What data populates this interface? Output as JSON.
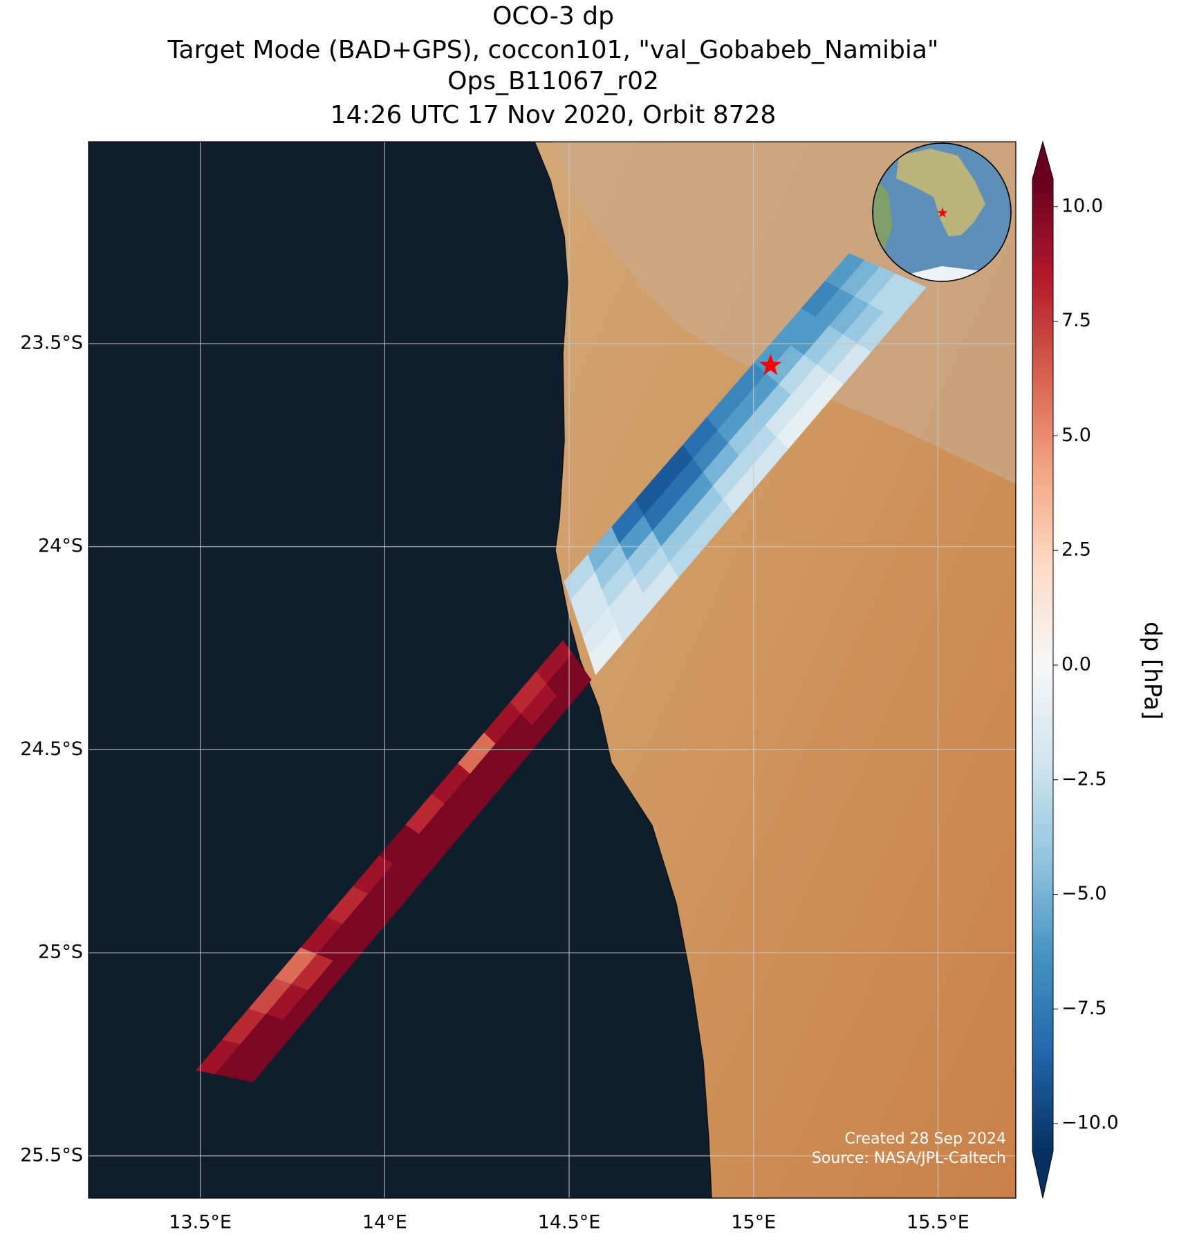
{
  "chart_data": {
    "type": "swath-map",
    "title": [
      "OCO-3 dp",
      "Target Mode (BAD+GPS), coccon101, \"val_Gobabeb_Namibia\"",
      "Ops_B11067_r02",
      "14:26 UTC 17 Nov 2020, Orbit 8728"
    ],
    "xlim": [
      13.197,
      15.711
    ],
    "ylim": [
      -25.604,
      -23.003
    ],
    "xticks": [
      {
        "value": 13.5,
        "label": "13.5°E"
      },
      {
        "value": 14,
        "label": "14°E"
      },
      {
        "value": 14.5,
        "label": "14.5°E"
      },
      {
        "value": 15,
        "label": "15°E"
      },
      {
        "value": 15.5,
        "label": "15.5°E"
      }
    ],
    "yticks": [
      {
        "value": -23.5,
        "label": "23.5°S"
      },
      {
        "value": -24,
        "label": "24°S"
      },
      {
        "value": -24.5,
        "label": "24.5°S"
      },
      {
        "value": -25,
        "label": "25°S"
      },
      {
        "value": -25.5,
        "label": "25.5°S"
      }
    ],
    "grid": true,
    "colorbar_label": "dp [hPa]",
    "clim": [
      -10.6,
      10.6
    ],
    "colorbar_ticks": [
      {
        "value": 10,
        "label": "10.0"
      },
      {
        "value": 7.5,
        "label": "7.5"
      },
      {
        "value": 5,
        "label": "5.0"
      },
      {
        "value": 2.5,
        "label": "2.5"
      },
      {
        "value": 0,
        "label": "0.0"
      },
      {
        "value": -2.5,
        "label": "−2.5"
      },
      {
        "value": -5,
        "label": "−5.0"
      },
      {
        "value": -7.5,
        "label": "−7.5"
      },
      {
        "value": -10,
        "label": "−10.0"
      }
    ],
    "colormap": [
      "#053061",
      "#2166ac",
      "#4393c3",
      "#92c5de",
      "#d1e5f0",
      "#f7f7f7",
      "#fddbc7",
      "#f4a582",
      "#d6604d",
      "#b2182b",
      "#67001f"
    ],
    "site": {
      "lon": 15.046,
      "lat": -23.554,
      "color": "#ff0000"
    },
    "swaths": [
      {
        "corner_lon": [
          14.487,
          14.572,
          15.259,
          15.468
        ],
        "corner_lat": [
          -24.086,
          -24.315,
          -23.278,
          -23.361
        ],
        "values": [
          [
            -3,
            -2,
            -2,
            -1.5,
            -1
          ],
          [
            -5,
            -4,
            -3,
            -2,
            -2
          ],
          [
            -8,
            -6,
            -4,
            -3,
            -2
          ],
          [
            -9,
            -8,
            -6,
            -4,
            -3
          ],
          [
            -9,
            -8,
            -6,
            -4,
            -3
          ],
          [
            -8,
            -7,
            -5,
            -3,
            -2
          ],
          [
            -7,
            -6,
            -4,
            -3,
            -2
          ],
          [
            -7,
            -6,
            -4,
            -2,
            -1
          ],
          [
            -6,
            -5,
            -3,
            -2,
            -1
          ],
          [
            -6,
            -6,
            -4,
            -3,
            -2
          ],
          [
            -7,
            -6,
            -5,
            -4,
            -3
          ],
          [
            -6,
            -5,
            -4,
            -3,
            -3
          ]
        ]
      },
      {
        "corner_lon": [
          13.489,
          13.643,
          14.483,
          14.56
        ],
        "corner_lat": [
          -25.289,
          -25.318,
          -24.231,
          -24.328
        ],
        "values": [
          [
            9,
            10,
            10
          ],
          [
            8,
            10,
            10
          ],
          [
            7,
            9,
            10
          ],
          [
            6,
            8,
            10
          ],
          [
            9,
            10,
            10
          ],
          [
            8,
            10,
            10
          ],
          [
            9,
            10,
            10
          ],
          [
            10,
            10,
            10
          ],
          [
            8,
            10,
            10
          ],
          [
            9,
            10,
            10
          ],
          [
            6,
            10,
            10
          ],
          [
            9,
            10,
            10
          ],
          [
            8,
            9,
            10
          ],
          [
            9,
            10,
            10
          ]
        ]
      }
    ],
    "annotations": [
      "Created 28 Sep 2024",
      "Source: NASA/JPL-Caltech"
    ]
  }
}
